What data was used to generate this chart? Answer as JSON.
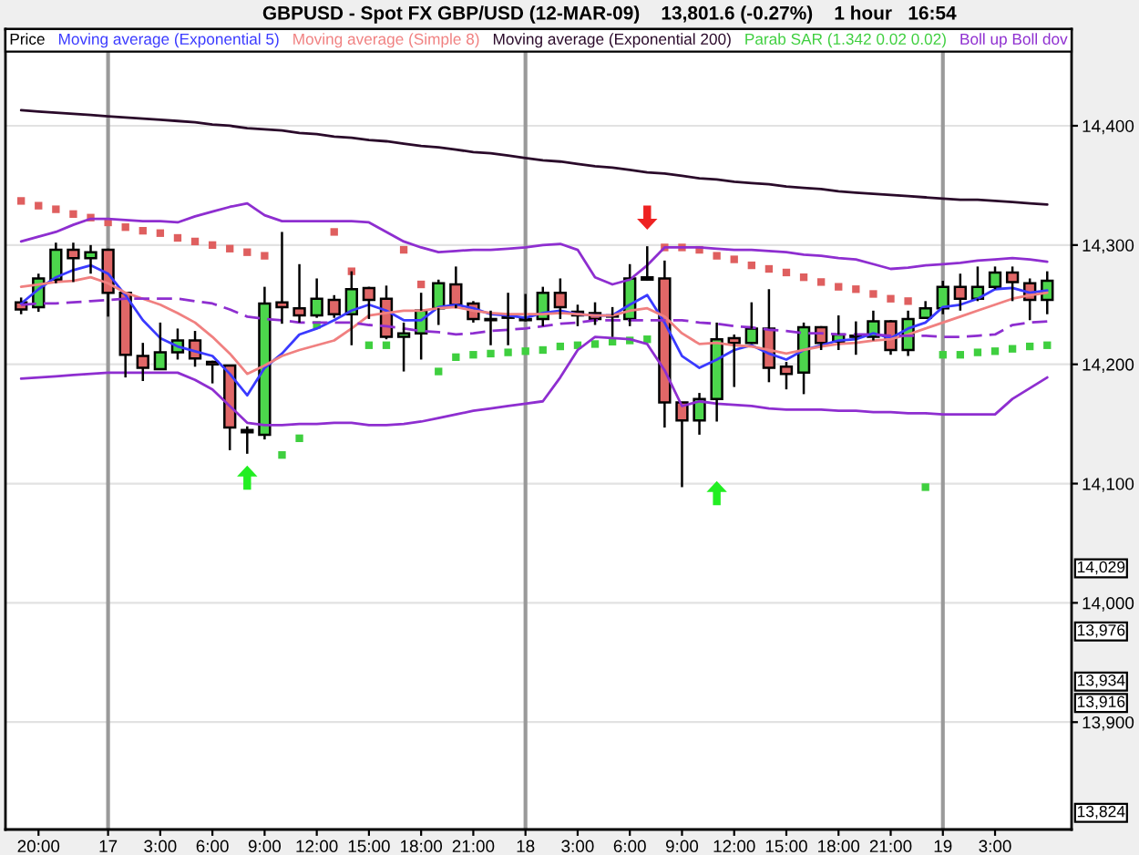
{
  "chart_data": {
    "type": "candlestick",
    "title": "GBPUSD - Spot FX GBP/USD (12-MAR-09)    13,801.6 (-0.27%)    1 hour   16:54",
    "categories": [
      null,
      "20:00",
      null,
      null,
      null,
      "17",
      null,
      null,
      "3:00",
      null,
      null,
      "6:00",
      null,
      null,
      "9:00",
      null,
      null,
      "12:00",
      null,
      null,
      "15:00",
      null,
      null,
      "18:00",
      null,
      null,
      "21:00",
      null,
      null,
      "18",
      null,
      null,
      "3:00",
      null,
      null,
      "6:00",
      null,
      null,
      "9:00",
      null,
      null,
      "12:00",
      null,
      null,
      "15:00",
      null,
      null,
      "18:00",
      null,
      null,
      "21:00",
      null,
      null,
      "19",
      null,
      null,
      "3:00",
      null,
      null,
      null
    ],
    "series": [
      {
        "name": "Price",
        "color": "#000000",
        "ohlc": [
          [
            14252,
            14256,
            14242,
            14246
          ],
          [
            14248,
            14276,
            14244,
            14272
          ],
          [
            14271,
            14302,
            14268,
            14296
          ],
          [
            14296,
            14302,
            14269,
            14289
          ],
          [
            14289,
            14300,
            14276,
            14294
          ],
          [
            14296,
            14297,
            14240,
            14260
          ],
          [
            14260,
            14260,
            14189,
            14208
          ],
          [
            14207,
            14218,
            14186,
            14197
          ],
          [
            14196,
            14235,
            14196,
            14210
          ],
          [
            14210,
            14230,
            14204,
            14220
          ],
          [
            14220,
            14228,
            14198,
            14205
          ],
          [
            14202,
            14203,
            14184,
            14200
          ],
          [
            14199,
            14199,
            14128,
            14147
          ],
          [
            14145,
            14148,
            14125,
            14143
          ],
          [
            14141,
            14265,
            14137,
            14251
          ],
          [
            14252,
            14311,
            14234,
            14248
          ],
          [
            14247,
            14284,
            14235,
            14241
          ],
          [
            14241,
            14272,
            14239,
            14255
          ],
          [
            14254,
            14258,
            14239,
            14242
          ],
          [
            14242,
            14278,
            14216,
            14263
          ],
          [
            14264,
            14265,
            14238,
            14254
          ],
          [
            14255,
            14266,
            14221,
            14223
          ],
          [
            14223,
            14235,
            14194,
            14226
          ],
          [
            14226,
            14260,
            14204,
            14245
          ],
          [
            14247,
            14271,
            14233,
            14268
          ],
          [
            14267,
            14282,
            14247,
            14250
          ],
          [
            14251,
            14253,
            14235,
            14238
          ],
          [
            14238,
            14245,
            14216,
            14237
          ],
          [
            14240,
            14260,
            14216,
            14239
          ],
          [
            14238,
            14259,
            14236,
            14237
          ],
          [
            14238,
            14265,
            14232,
            14260
          ],
          [
            14260,
            14272,
            14238,
            14248
          ],
          [
            14244,
            14250,
            14232,
            14241
          ],
          [
            14243,
            14252,
            14233,
            14238
          ],
          [
            14241,
            14248,
            14223,
            14240
          ],
          [
            14238,
            14284,
            14232,
            14272
          ],
          [
            14273,
            14299,
            14270,
            14271
          ],
          [
            14272,
            14287,
            14147,
            14168
          ],
          [
            14168,
            14168,
            14097,
            14153
          ],
          [
            14153,
            14176,
            14141,
            14171
          ],
          [
            14171,
            14235,
            14152,
            14221
          ],
          [
            14222,
            14225,
            14181,
            14218
          ],
          [
            14218,
            14252,
            14217,
            14230
          ],
          [
            14230,
            14263,
            14185,
            14197
          ],
          [
            14198,
            14202,
            14179,
            14192
          ],
          [
            14193,
            14235,
            14175,
            14231
          ],
          [
            14231,
            14232,
            14212,
            14218
          ],
          [
            14219,
            14241,
            14212,
            14225
          ],
          [
            14224,
            14236,
            14208,
            14223
          ],
          [
            14223,
            14245,
            14220,
            14236
          ],
          [
            14236,
            14237,
            14208,
            14212
          ],
          [
            14212,
            14245,
            14207,
            14238
          ],
          [
            14239,
            14253,
            14239,
            14247
          ],
          [
            14247,
            14270,
            14242,
            14265
          ],
          [
            14265,
            14276,
            14245,
            14255
          ],
          [
            14255,
            14282,
            14253,
            14265
          ],
          [
            14265,
            14282,
            14263,
            14277
          ],
          [
            14277,
            14282,
            14253,
            14269
          ],
          [
            14268,
            14272,
            14237,
            14254
          ],
          [
            14254,
            14278,
            14242,
            14270
          ]
        ],
        "colors": [
          "#e06767",
          "#4cd64c",
          "#4cd64c",
          "#e06767",
          "#4cd64c",
          "#e06767",
          "#e06767",
          "#e06767",
          "#4cd64c",
          "#4cd64c",
          "#e06767",
          "#e06767",
          "#e06767",
          "#e06767",
          "#4cd64c",
          "#e06767",
          "#e06767",
          "#4cd64c",
          "#e06767",
          "#4cd64c",
          "#e06767",
          "#e06767",
          "#4cd64c",
          "#4cd64c",
          "#4cd64c",
          "#e06767",
          "#e06767",
          "#e06767",
          "#e06767",
          "#e06767",
          "#4cd64c",
          "#e06767",
          "#e06767",
          "#e06767",
          "#e06767",
          "#4cd64c",
          "#e06767",
          "#e06767",
          "#e06767",
          "#4cd64c",
          "#4cd64c",
          "#e06767",
          "#4cd64c",
          "#e06767",
          "#e06767",
          "#4cd64c",
          "#e06767",
          "#4cd64c",
          "#e06767",
          "#4cd64c",
          "#e06767",
          "#4cd64c",
          "#4cd64c",
          "#4cd64c",
          "#e06767",
          "#4cd64c",
          "#4cd64c",
          "#e06767",
          "#e06767",
          "#4cd64c"
        ]
      },
      {
        "type": "line",
        "name": "Moving average (Exponential 5)",
        "color": "#3a3aff",
        "values": [
          14251,
          14263,
          14273,
          14279,
          14283,
          14276,
          14258,
          14237,
          14222,
          14215,
          14211,
          14207,
          14192,
          14174,
          14197,
          14209,
          14225,
          14230,
          14237,
          14245,
          14250,
          14245,
          14237,
          14237,
          14248,
          14250,
          14247,
          14242,
          14241,
          14239,
          14243,
          14245,
          14242,
          14241,
          14241,
          14250,
          14258,
          14235,
          14207,
          14197,
          14204,
          14212,
          14216,
          14209,
          14204,
          14212,
          14216,
          14220,
          14221,
          14226,
          14222,
          14230,
          14235,
          14248,
          14250,
          14255,
          14263,
          14264,
          14260,
          14262
        ]
      },
      {
        "type": "line",
        "name": "Moving average (Simple 8)",
        "color": "#f08080",
        "values": [
          14265,
          14267,
          14269,
          14270,
          14273,
          14268,
          14260,
          14255,
          14250,
          14243,
          14235,
          14223,
          14209,
          14192,
          14199,
          14207,
          14212,
          14216,
          14220,
          14230,
          14241,
          14243,
          14245,
          14245,
          14247,
          14248,
          14245,
          14243,
          14242,
          14242,
          14242,
          14243,
          14242,
          14241,
          14241,
          14245,
          14247,
          14240,
          14226,
          14217,
          14218,
          14216,
          14215,
          14212,
          14209,
          14212,
          14215,
          14217,
          14218,
          14220,
          14221,
          14225,
          14230,
          14235,
          14240,
          14245,
          14250,
          14255,
          14258,
          14260
        ]
      },
      {
        "type": "line",
        "name": "Moving average (Exponential 200)",
        "color": "#2a0a2a",
        "values": [
          14413,
          14412,
          14411,
          14410,
          14409,
          14408,
          14407,
          14406,
          14405,
          14404,
          14403,
          14401,
          14400,
          14398,
          14397,
          14396,
          14394,
          14393,
          14391,
          14390,
          14388,
          14387,
          14385,
          14383,
          14382,
          14380,
          14378,
          14377,
          14375,
          14373,
          14371,
          14370,
          14368,
          14366,
          14365,
          14363,
          14361,
          14360,
          14358,
          14356,
          14355,
          14353,
          14352,
          14351,
          14349,
          14348,
          14347,
          14345,
          14344,
          14343,
          14342,
          14341,
          14340,
          14339,
          14338,
          14338,
          14337,
          14336,
          14335,
          14334
        ]
      },
      {
        "type": "scatter",
        "name": "Parab SAR (1.342 0.02 0.02)",
        "color": "#3fcf3f",
        "marker": "square",
        "values": [
          14337,
          14333,
          14330,
          14326,
          14323,
          14319,
          14315,
          14312,
          14310,
          14306,
          14303,
          14300,
          14297,
          14294,
          14291,
          14124,
          14138,
          14233,
          14311,
          14278,
          14216,
          14216,
          14296,
          14267,
          14194,
          14206,
          14208,
          14209,
          14210,
          14211,
          14212,
          14215,
          14216,
          14217,
          14219,
          14220,
          14221,
          14298,
          14298,
          14296,
          14291,
          14288,
          14283,
          14280,
          14277,
          14273,
          14269,
          14265,
          14263,
          14259,
          14255,
          14253,
          14097,
          14208,
          14208,
          14210,
          14211,
          14213,
          14215,
          14216
        ],
        "colors": [
          "#df5f5f",
          "#df5f5f",
          "#df5f5f",
          "#df5f5f",
          "#df5f5f",
          "#df5f5f",
          "#df5f5f",
          "#df5f5f",
          "#df5f5f",
          "#df5f5f",
          "#df5f5f",
          "#df5f5f",
          "#df5f5f",
          "#df5f5f",
          "#df5f5f",
          "#3fcf3f",
          "#3fcf3f",
          "#3fcf3f",
          "#df5f5f",
          "#df5f5f",
          "#3fcf3f",
          "#3fcf3f",
          "#df5f5f",
          "#df5f5f",
          "#3fcf3f",
          "#3fcf3f",
          "#3fcf3f",
          "#3fcf3f",
          "#3fcf3f",
          "#3fcf3f",
          "#3fcf3f",
          "#3fcf3f",
          "#3fcf3f",
          "#3fcf3f",
          "#3fcf3f",
          "#3fcf3f",
          "#3fcf3f",
          "#df5f5f",
          "#df5f5f",
          "#df5f5f",
          "#df5f5f",
          "#df5f5f",
          "#df5f5f",
          "#df5f5f",
          "#df5f5f",
          "#df5f5f",
          "#df5f5f",
          "#df5f5f",
          "#df5f5f",
          "#df5f5f",
          "#df5f5f",
          "#df5f5f",
          "#3fcf3f",
          "#3fcf3f",
          "#3fcf3f",
          "#3fcf3f",
          "#3fcf3f",
          "#3fcf3f",
          "#3fcf3f",
          "#3fcf3f"
        ]
      },
      {
        "type": "line",
        "name": "Boll up Boll dov",
        "color": "#8e2ed0",
        "values": [
          14303,
          14307,
          14311,
          14317,
          14322,
          14322,
          14321,
          14320,
          14320,
          14319,
          14324,
          14328,
          14332,
          14335,
          14325,
          14320,
          14320,
          14320,
          14320,
          14320,
          14319,
          14311,
          14303,
          14298,
          14294,
          14295,
          14296,
          14296,
          14297,
          14298,
          14300,
          14301,
          14296,
          14273,
          14267,
          14271,
          14283,
          14298,
          14298,
          14298,
          14297,
          14296,
          14296,
          14295,
          14294,
          14292,
          14291,
          14289,
          14288,
          14284,
          14280,
          14281,
          14283,
          14284,
          14285,
          14287,
          14288,
          14289,
          14288,
          14286
        ]
      },
      {
        "type": "line",
        "color": "#8e2ed0",
        "line_style": "dashed",
        "values": [
          14250,
          14251,
          14251,
          14252,
          14253,
          14254,
          14255,
          14255,
          14255,
          14255,
          14253,
          14251,
          14246,
          14240,
          14238,
          14237,
          14235,
          14235,
          14235,
          14235,
          14233,
          14232,
          14230,
          14228,
          14227,
          14225,
          14226,
          14228,
          14229,
          14230,
          14232,
          14234,
          14235,
          14237,
          14237,
          14237,
          14237,
          14237,
          14237,
          14235,
          14234,
          14232,
          14231,
          14229,
          14228,
          14226,
          14226,
          14225,
          14225,
          14225,
          14224,
          14224,
          14224,
          14223,
          14223,
          14224,
          14225,
          14233,
          14235,
          14236
        ]
      },
      {
        "type": "line",
        "color": "#8e2ed0",
        "values": [
          14188,
          14189,
          14190,
          14191,
          14192,
          14193,
          14193,
          14193,
          14193,
          14193,
          14187,
          14179,
          14165,
          14151,
          14149,
          14149,
          14150,
          14150,
          14151,
          14151,
          14149,
          14149,
          14150,
          14152,
          14155,
          14158,
          14161,
          14163,
          14165,
          14167,
          14169,
          14189,
          14212,
          14223,
          14222,
          14221,
          14217,
          14195,
          14165,
          14169,
          14167,
          14166,
          14165,
          14163,
          14162,
          14162,
          14162,
          14161,
          14161,
          14160,
          14160,
          14159,
          14159,
          14158,
          14158,
          14158,
          14158,
          14171,
          14180,
          14189
        ]
      },
      {
        "type": "scatter",
        "marker": "triangle",
        "values": [
          null,
          null,
          null,
          null,
          null,
          null,
          null,
          null,
          null,
          null,
          null,
          null,
          null,
          14105,
          null,
          null,
          null,
          null,
          null,
          null,
          null,
          null,
          null,
          null,
          null,
          null,
          null,
          null,
          null,
          null,
          null,
          null,
          null,
          null,
          null,
          null,
          14323,
          null,
          null,
          null,
          14092,
          null,
          null,
          null,
          null,
          null,
          null,
          null,
          null,
          null,
          null,
          null,
          null,
          null,
          null,
          null,
          null,
          null,
          null,
          null
        ],
        "colors": [
          null,
          null,
          null,
          null,
          null,
          null,
          null,
          null,
          null,
          null,
          null,
          null,
          null,
          "#22ee22",
          null,
          null,
          null,
          null,
          null,
          null,
          null,
          null,
          null,
          null,
          null,
          null,
          null,
          null,
          null,
          null,
          null,
          null,
          null,
          null,
          null,
          null,
          "#ee2222",
          null,
          null,
          null,
          "#22ee22",
          null,
          null,
          null,
          null,
          null,
          null,
          null,
          null,
          null,
          null,
          null,
          null,
          null,
          null,
          null,
          null,
          null,
          null,
          null
        ]
      }
    ],
    "ylim": [
      13810,
      14481
    ],
    "yticks": [
      {
        "value": 13900,
        "label": "13,900"
      },
      {
        "value": 14000,
        "label": "14,000"
      },
      {
        "value": 14100,
        "label": "14,100"
      },
      {
        "value": 14200,
        "label": "14,200"
      },
      {
        "value": 14300,
        "label": "14,300"
      },
      {
        "value": 14400,
        "label": "14,400"
      }
    ],
    "grid": "y",
    "legend": "top",
    "ref_lines": [
      {
        "axis": "x",
        "value": "17",
        "color": "#9a9a9a"
      },
      {
        "axis": "x",
        "value": "18",
        "color": "#9a9a9a"
      },
      {
        "axis": "x",
        "value": "19",
        "color": "#9a9a9a"
      }
    ],
    "annotations": [
      {
        "text": "14,029",
        "y": 14029
      },
      {
        "text": "13,976",
        "y": 13976
      },
      {
        "text": "13,934",
        "y": 13934
      },
      {
        "text": "13,916",
        "y": 13916
      },
      {
        "text": "13,824",
        "y": 13824
      }
    ]
  }
}
